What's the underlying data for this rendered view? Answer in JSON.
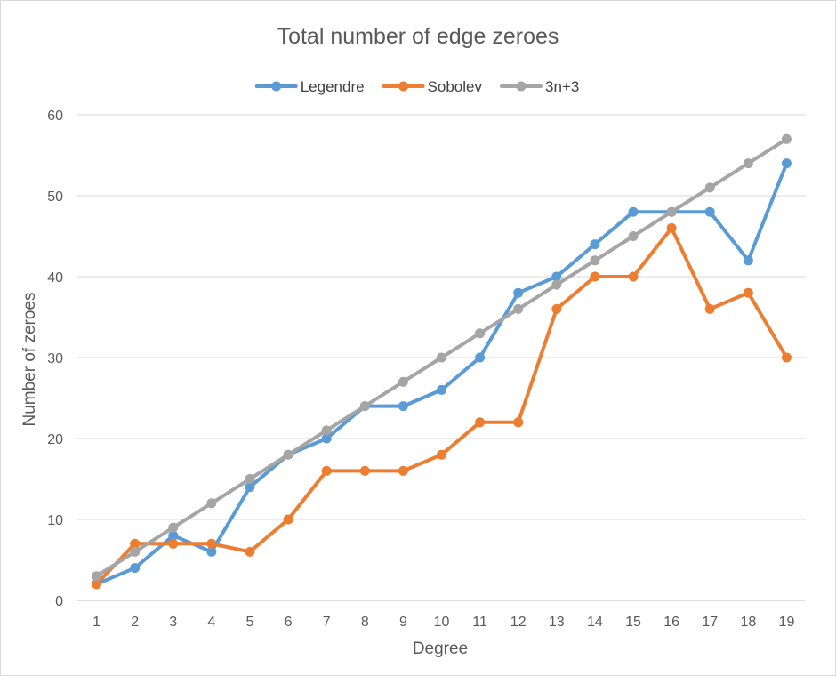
{
  "chart_data": {
    "type": "line",
    "title": "Total number of edge zeroes",
    "xlabel": "Degree",
    "ylabel": "Number of zeroes",
    "categories": [
      1,
      2,
      3,
      4,
      5,
      6,
      7,
      8,
      9,
      10,
      11,
      12,
      13,
      14,
      15,
      16,
      17,
      18,
      19
    ],
    "ylim": [
      0,
      60
    ],
    "yticks": [
      0,
      10,
      20,
      30,
      40,
      50,
      60
    ],
    "grid": true,
    "legend_position": "top",
    "series": [
      {
        "name": "Legendre",
        "color": "#5b9bd5",
        "values": [
          2,
          4,
          8,
          6,
          14,
          18,
          20,
          24,
          24,
          26,
          30,
          38,
          40,
          44,
          48,
          48,
          48,
          42,
          54
        ]
      },
      {
        "name": "Sobolev",
        "color": "#ed7d31",
        "values": [
          2,
          7,
          7,
          7,
          6,
          10,
          16,
          16,
          16,
          18,
          22,
          22,
          36,
          40,
          40,
          46,
          36,
          38,
          30
        ]
      },
      {
        "name": "3n+3",
        "color": "#a5a5a5",
        "values": [
          3,
          6,
          9,
          12,
          15,
          18,
          21,
          24,
          27,
          30,
          33,
          36,
          39,
          42,
          45,
          48,
          51,
          54,
          57
        ]
      }
    ]
  }
}
